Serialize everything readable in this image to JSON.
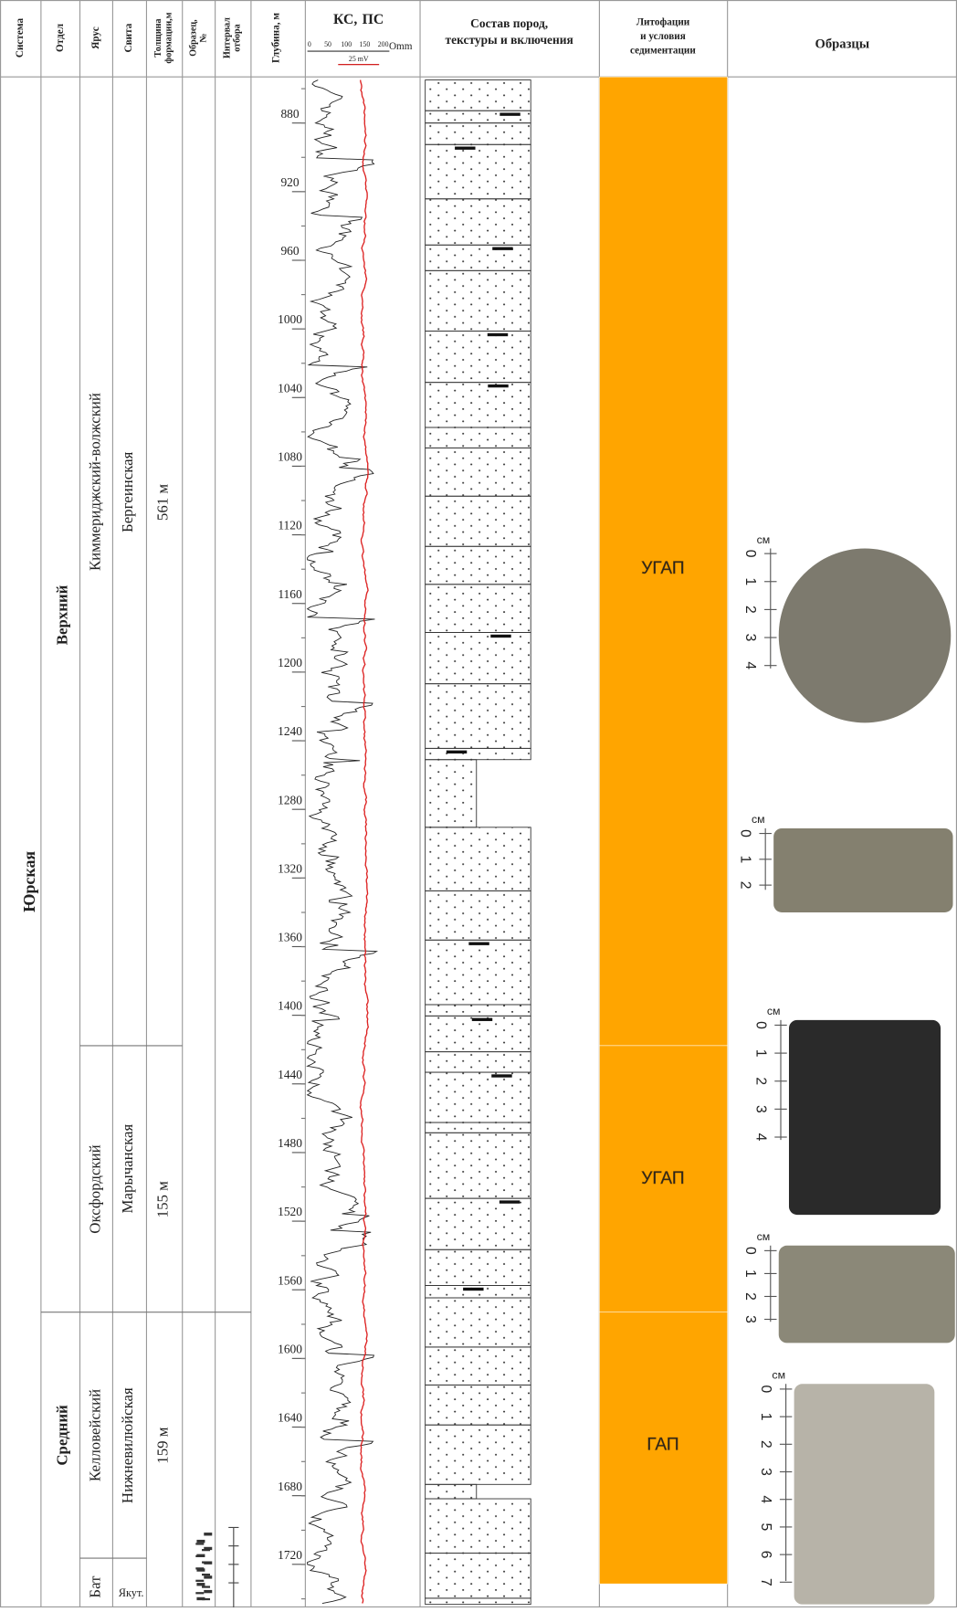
{
  "header": {
    "system": "Система",
    "division": "Отдел",
    "stage": "Ярус",
    "suite": "Свита",
    "thickness": [
      "Толщина",
      "формации,м"
    ],
    "sample": [
      "Образец,",
      "№"
    ],
    "interval": [
      "Интервал",
      "отбора"
    ],
    "depth": "Глубина, м",
    "log": {
      "ks": "КС,",
      "ps": "ПС",
      "scale": [
        "0",
        "50",
        "100",
        "150",
        "200"
      ],
      "unit": "Omm",
      "ps_scale": "25 mV"
    },
    "composition": [
      "Состав пород,",
      "текстуры и включения"
    ],
    "lithofacies": [
      "Литофации",
      "и условия",
      "седиментации"
    ],
    "samples": "Образцы"
  },
  "depths": [
    880,
    920,
    960,
    1000,
    1040,
    1080,
    1120,
    1160,
    1200,
    1240,
    1280,
    1320,
    1360,
    1400,
    1440,
    1480,
    1520,
    1560,
    1600,
    1640,
    1680,
    1720
  ],
  "strat": {
    "system": "Юрская",
    "divisions": [
      "Верхний",
      "Средний"
    ],
    "stages": [
      "Киммериджский-волжский",
      "Оксфордский",
      "Келловейский",
      "Бат"
    ],
    "suites": [
      "Бергеинская",
      "Марычанская",
      "Нижневилюйская",
      "Якут."
    ],
    "thicknesses": [
      "561 м",
      "155 м",
      "159 м"
    ]
  },
  "lithofacies": [
    "УГАП",
    "УГАП",
    "ГАП"
  ],
  "photos": [
    {
      "unit": "см",
      "ruler": [
        "0",
        "1",
        "2",
        "3",
        "4"
      ]
    },
    {
      "unit": "см",
      "ruler": [
        "0",
        "1",
        "2"
      ]
    },
    {
      "unit": "см",
      "ruler": [
        "0",
        "1",
        "2",
        "3",
        "4"
      ]
    },
    {
      "unit": "см",
      "ruler": [
        "0",
        "1",
        "2",
        "3"
      ]
    },
    {
      "unit": "см",
      "ruler": [
        "0",
        "1",
        "2",
        "3",
        "4",
        "5",
        "6",
        "7"
      ]
    }
  ]
}
